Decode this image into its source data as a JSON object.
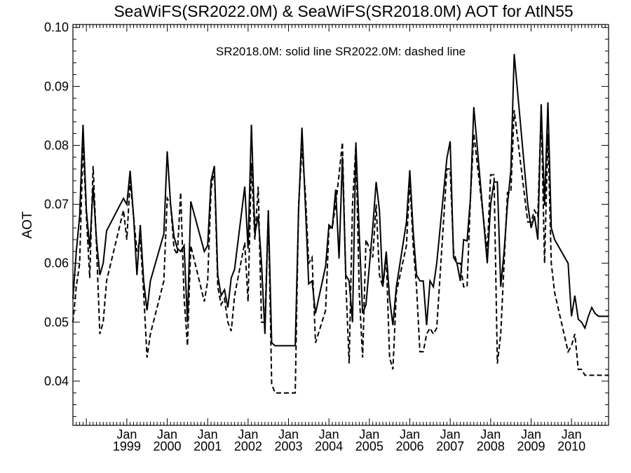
{
  "chart_data": {
    "type": "line",
    "title": "SeaWiFS(SR2022.0M) & SeaWiFS(SR2018.0M)  AOT for AtlN55",
    "legend_text": "SR2018.0M: solid line   SR2022.0M: dashed line",
    "ylabel": "AOT",
    "xlabel": "",
    "ylim": [
      0.0325,
      0.1005
    ],
    "xlim": [
      1997.667,
      2010.917
    ],
    "grid": false,
    "yticks": [
      "0.04",
      "0.05",
      "0.06",
      "0.07",
      "0.08",
      "0.09",
      "0.10"
    ],
    "ytick_values": [
      0.04,
      0.05,
      0.06,
      0.07,
      0.08,
      0.09,
      0.1
    ],
    "xticks": [
      {
        "month": "Jan",
        "year": "1999",
        "value": 1999.0
      },
      {
        "month": "Jan",
        "year": "2000",
        "value": 2000.0
      },
      {
        "month": "Jan",
        "year": "2001",
        "value": 2001.0
      },
      {
        "month": "Jan",
        "year": "2002",
        "value": 2002.0
      },
      {
        "month": "Jan",
        "year": "2003",
        "value": 2003.0
      },
      {
        "month": "Jan",
        "year": "2004",
        "value": 2004.0
      },
      {
        "month": "Jan",
        "year": "2005",
        "value": 2005.0
      },
      {
        "month": "Jan",
        "year": "2006",
        "value": 2006.0
      },
      {
        "month": "Jan",
        "year": "2007",
        "value": 2007.0
      },
      {
        "month": "Jan",
        "year": "2008",
        "value": 2008.0
      },
      {
        "month": "Jan",
        "year": "2009",
        "value": 2009.0
      },
      {
        "month": "Jan",
        "year": "2010",
        "value": 2010.0
      }
    ],
    "series": [
      {
        "name": "SR2018.0M",
        "style": "solid",
        "color": "#000000",
        "x": [
          1997.667,
          1997.75,
          1997.833,
          1997.917,
          1998.0,
          1998.083,
          1998.167,
          1998.25,
          1998.333,
          1998.417,
          1998.5,
          1998.917,
          1999.0,
          1999.083,
          1999.167,
          1999.25,
          1999.333,
          1999.417,
          1999.5,
          1999.583,
          1999.917,
          2000.0,
          2000.083,
          2000.167,
          2000.25,
          2000.333,
          2000.417,
          2000.5,
          2000.583,
          2000.917,
          2001.0,
          2001.083,
          2001.167,
          2001.25,
          2001.333,
          2001.417,
          2001.5,
          2001.583,
          2001.667,
          2001.917,
          2002.0,
          2002.083,
          2002.167,
          2002.25,
          2002.333,
          2002.417,
          2002.5,
          2002.583,
          2002.667,
          2003.167,
          2003.25,
          2003.333,
          2003.417,
          2003.5,
          2003.583,
          2003.667,
          2003.917,
          2004.0,
          2004.083,
          2004.167,
          2004.25,
          2004.333,
          2004.417,
          2004.5,
          2004.583,
          2004.667,
          2004.75,
          2004.833,
          2004.917,
          2005.083,
          2005.167,
          2005.25,
          2005.333,
          2005.417,
          2005.5,
          2005.583,
          2005.667,
          2005.917,
          2006.0,
          2006.083,
          2006.167,
          2006.25,
          2006.333,
          2006.417,
          2006.5,
          2006.583,
          2006.667,
          2006.917,
          2007.0,
          2007.083,
          2007.167,
          2007.25,
          2007.333,
          2007.417,
          2007.5,
          2007.583,
          2007.917,
          2008.0,
          2008.083,
          2008.167,
          2008.25,
          2008.333,
          2008.417,
          2008.5,
          2008.583,
          2008.917,
          2009.0,
          2009.083,
          2009.167,
          2009.25,
          2009.333,
          2009.417,
          2009.5,
          2009.583,
          2009.917,
          2010.0,
          2010.083,
          2010.167,
          2010.25,
          2010.333,
          2010.417,
          2010.5,
          2010.583,
          2010.667,
          2010.917
        ],
        "y": [
          0.054,
          0.062,
          0.068,
          0.0835,
          0.069,
          0.0625,
          0.073,
          0.064,
          0.058,
          0.06,
          0.0655,
          0.071,
          0.07,
          0.0757,
          0.068,
          0.058,
          0.0665,
          0.057,
          0.052,
          0.057,
          0.065,
          0.079,
          0.07,
          0.0645,
          0.0625,
          0.062,
          0.063,
          0.05,
          0.0705,
          0.062,
          0.063,
          0.074,
          0.0765,
          0.058,
          0.0545,
          0.0555,
          0.0525,
          0.0575,
          0.059,
          0.073,
          0.0625,
          0.0835,
          0.065,
          0.068,
          0.06,
          0.048,
          0.069,
          0.0465,
          0.046,
          0.046,
          0.069,
          0.083,
          0.07,
          0.0565,
          0.057,
          0.0515,
          0.0595,
          0.0665,
          0.066,
          0.0725,
          0.0608,
          0.078,
          0.058,
          0.057,
          0.05,
          0.0805,
          0.065,
          0.0515,
          0.053,
          0.066,
          0.0738,
          0.069,
          0.056,
          0.062,
          0.054,
          0.0495,
          0.056,
          0.067,
          0.0758,
          0.0655,
          0.058,
          0.057,
          0.057,
          0.0495,
          0.057,
          0.056,
          0.06,
          0.0778,
          0.0807,
          0.061,
          0.06,
          0.057,
          0.064,
          0.0638,
          0.071,
          0.0865,
          0.06,
          0.07,
          0.0738,
          0.0738,
          0.056,
          0.062,
          0.07,
          0.0757,
          0.0955,
          0.07,
          0.066,
          0.068,
          0.064,
          0.087,
          0.0698,
          0.0873,
          0.066,
          0.064,
          0.06,
          0.051,
          0.0545,
          0.0505,
          0.05,
          0.049,
          0.051,
          0.0525,
          0.0515,
          0.051,
          0.051
        ],
        "x_keep": 117
      },
      {
        "name": "SR2022.0M",
        "style": "dashed",
        "color": "#000000",
        "x": [
          1997.667,
          1997.75,
          1997.833,
          1997.917,
          1998.0,
          1998.083,
          1998.167,
          1998.25,
          1998.333,
          1998.417,
          1998.5,
          1998.917,
          1999.0,
          1999.083,
          1999.167,
          1999.25,
          1999.333,
          1999.417,
          1999.5,
          1999.583,
          1999.917,
          2000.0,
          2000.083,
          2000.167,
          2000.25,
          2000.333,
          2000.417,
          2000.5,
          2000.583,
          2000.917,
          2001.0,
          2001.083,
          2001.167,
          2001.25,
          2001.333,
          2001.417,
          2001.5,
          2001.583,
          2001.667,
          2001.917,
          2002.0,
          2002.083,
          2002.167,
          2002.25,
          2002.333,
          2002.417,
          2002.5,
          2002.583,
          2002.667,
          2003.167,
          2003.25,
          2003.333,
          2003.417,
          2003.5,
          2003.583,
          2003.667,
          2003.917,
          2004.0,
          2004.083,
          2004.167,
          2004.25,
          2004.333,
          2004.417,
          2004.5,
          2004.583,
          2004.667,
          2004.75,
          2004.833,
          2004.917,
          2005.083,
          2005.167,
          2005.25,
          2005.333,
          2005.417,
          2005.5,
          2005.583,
          2005.667,
          2005.917,
          2006.0,
          2006.083,
          2006.167,
          2006.25,
          2006.333,
          2006.417,
          2006.5,
          2006.583,
          2006.667,
          2006.917,
          2007.0,
          2007.083,
          2007.167,
          2007.25,
          2007.333,
          2007.417,
          2007.5,
          2007.583,
          2007.917,
          2008.0,
          2008.083,
          2008.167,
          2008.25,
          2008.333,
          2008.417,
          2008.5,
          2008.583,
          2008.917,
          2009.0,
          2009.083,
          2009.167,
          2009.25,
          2009.333,
          2009.417,
          2009.5,
          2009.583,
          2009.917,
          2010.0,
          2010.083,
          2010.167,
          2010.25,
          2010.333,
          2010.417,
          2010.5,
          2010.583,
          2010.667,
          2010.917
        ],
        "y": [
          0.05,
          0.056,
          0.06,
          0.0805,
          0.068,
          0.0575,
          0.0765,
          0.063,
          0.048,
          0.05,
          0.057,
          0.069,
          0.064,
          0.074,
          0.068,
          0.062,
          0.064,
          0.055,
          0.044,
          0.048,
          0.057,
          0.071,
          0.07,
          0.0625,
          0.0615,
          0.072,
          0.054,
          0.046,
          0.063,
          0.0535,
          0.057,
          0.0725,
          0.076,
          0.056,
          0.053,
          0.054,
          0.05,
          0.0485,
          0.0545,
          0.0635,
          0.0535,
          0.077,
          0.064,
          0.073,
          0.05,
          0.05,
          0.069,
          0.0395,
          0.038,
          0.038,
          0.07,
          0.0795,
          0.072,
          0.06,
          0.061,
          0.0465,
          0.052,
          0.066,
          0.066,
          0.07,
          0.075,
          0.0805,
          0.057,
          0.043,
          0.07,
          0.08,
          0.055,
          0.044,
          0.064,
          0.061,
          0.07,
          0.058,
          0.056,
          0.061,
          0.044,
          0.042,
          0.055,
          0.063,
          0.074,
          0.063,
          0.056,
          0.045,
          0.045,
          0.048,
          0.049,
          0.048,
          0.049,
          0.076,
          0.076,
          0.062,
          0.06,
          0.06,
          0.056,
          0.056,
          0.071,
          0.082,
          0.062,
          0.075,
          0.075,
          0.043,
          0.048,
          0.06,
          0.072,
          0.072,
          0.086,
          0.067,
          0.067,
          0.069,
          0.068,
          0.086,
          0.06,
          0.082,
          0.06,
          0.055,
          0.045,
          0.046,
          0.048,
          0.042,
          0.042,
          0.041,
          0.041,
          0.041,
          0.041,
          0.041,
          0.041
        ],
        "x_keep": 117
      }
    ]
  }
}
